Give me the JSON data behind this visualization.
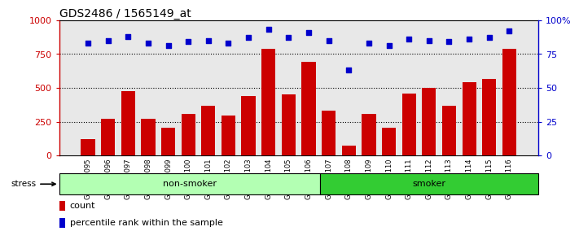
{
  "title": "GDS2486 / 1565149_at",
  "categories": [
    "GSM101095",
    "GSM101096",
    "GSM101097",
    "GSM101098",
    "GSM101099",
    "GSM101100",
    "GSM101101",
    "GSM101102",
    "GSM101103",
    "GSM101104",
    "GSM101105",
    "GSM101106",
    "GSM101107",
    "GSM101108",
    "GSM101109",
    "GSM101110",
    "GSM101111",
    "GSM101112",
    "GSM101113",
    "GSM101114",
    "GSM101115",
    "GSM101116"
  ],
  "bar_values": [
    120,
    270,
    475,
    270,
    205,
    310,
    370,
    295,
    440,
    790,
    450,
    690,
    330,
    75,
    305,
    205,
    455,
    500,
    370,
    545,
    565,
    790
  ],
  "percentile_values": [
    83,
    85,
    88,
    83,
    81,
    84,
    85,
    83,
    87,
    93,
    87,
    91,
    85,
    63,
    83,
    81,
    86,
    85,
    84,
    86,
    87,
    92
  ],
  "bar_color": "#cc0000",
  "percentile_color": "#0000cc",
  "non_smoker_count": 12,
  "smoker_count": 10,
  "non_smoker_label": "non-smoker",
  "smoker_label": "smoker",
  "non_smoker_bg": "#b3ffb3",
  "smoker_bg": "#33cc33",
  "stress_label": "stress",
  "ylim_left": [
    0,
    1000
  ],
  "ylim_right": [
    0,
    100
  ],
  "yticks_left": [
    0,
    250,
    500,
    750,
    1000
  ],
  "ytick_labels_left": [
    "0",
    "250",
    "500",
    "750",
    "1000"
  ],
  "yticks_right": [
    0,
    25,
    50,
    75,
    100
  ],
  "ytick_labels_right": [
    "0",
    "25",
    "50",
    "75",
    "100%"
  ],
  "grid_lines": [
    250,
    500,
    750
  ],
  "legend_count_label": "count",
  "legend_pct_label": "percentile rank within the sample",
  "title_fontsize": 10,
  "bar_width": 0.7,
  "plot_bg": "#e8e8e8",
  "tick_label_bg": "#d0d0d0"
}
